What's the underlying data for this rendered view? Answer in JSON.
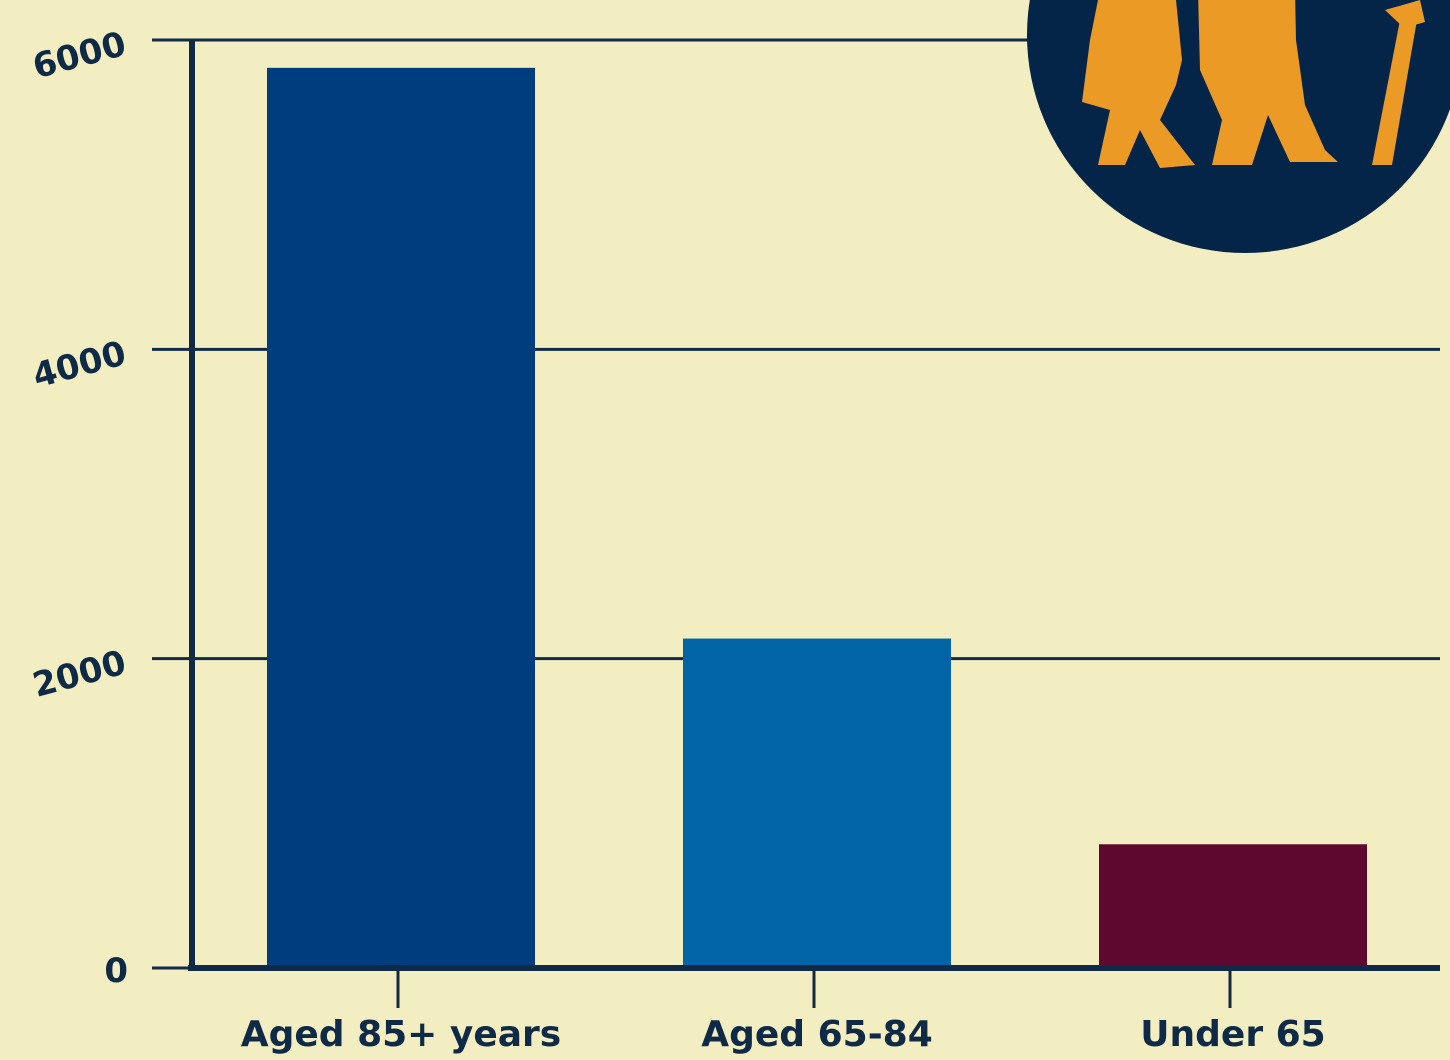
{
  "chart_data": {
    "type": "bar",
    "categories": [
      "Aged 85+ years",
      "Aged 65-84",
      "Under 65"
    ],
    "values": [
      5820,
      2130,
      800
    ],
    "yticks": [
      "0",
      "2000",
      "4000",
      "6000"
    ],
    "ylim": [
      0,
      6000
    ],
    "grid": true,
    "title": "",
    "xlabel": "",
    "ylabel": "",
    "colors": {
      "background": "#f3eec2",
      "axis": "#0f2a47",
      "bars": [
        "#003d7e",
        "#0064a6",
        "#5e0830"
      ],
      "badge": "#042548",
      "figures": "#eb9a25"
    }
  },
  "decoration": {
    "icon": "elderly-couple-icon"
  }
}
